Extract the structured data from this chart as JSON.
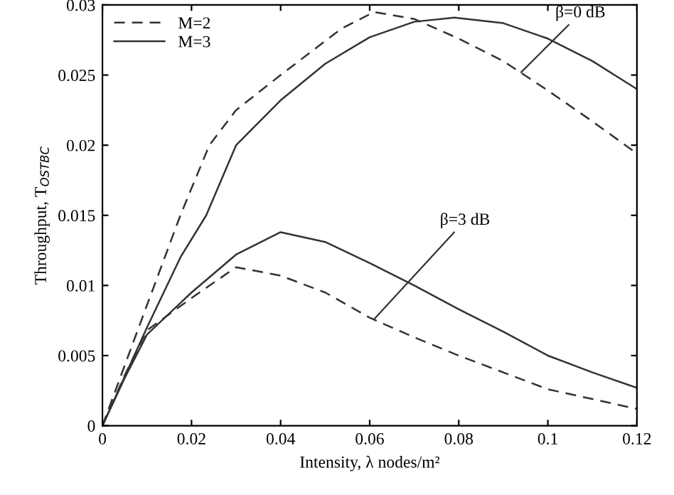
{
  "chart_data": {
    "type": "line",
    "xlabel": "Intensity, λ nodes/m²",
    "ylabel": "Throughput, T$_{OSTBC}$",
    "xlim": [
      0,
      0.12
    ],
    "ylim": [
      0,
      0.03
    ],
    "xticks": [
      0,
      0.02,
      0.04,
      0.06,
      0.08,
      0.1,
      0.12
    ],
    "yticks": [
      0,
      0.005,
      0.01,
      0.015,
      0.02,
      0.025,
      0.03
    ],
    "grid": false,
    "legend": "top left",
    "marker": "none",
    "series": [
      {
        "name": "M=2",
        "color": "#333333",
        "line_style": "dashed",
        "x": [
          0,
          0.005,
          0.01,
          0.0175,
          0.024,
          0.03,
          0.04,
          0.0536,
          0.061,
          0.07,
          0.08,
          0.09,
          0.1,
          0.11,
          0.12
        ],
        "values": [
          0,
          0.0043,
          0.0086,
          0.015,
          0.02,
          0.0225,
          0.025,
          0.0283,
          0.0295,
          0.029,
          0.0276,
          0.026,
          0.0239,
          0.0217,
          0.0194
        ]
      },
      {
        "name": "M=3",
        "color": "#333333",
        "line_style": "solid",
        "x": [
          0,
          0.005,
          0.01,
          0.0175,
          0.0233,
          0.03,
          0.04,
          0.05,
          0.06,
          0.07,
          0.079,
          0.09,
          0.1,
          0.11,
          0.12
        ],
        "values": [
          0,
          0.0035,
          0.007,
          0.012,
          0.015,
          0.02,
          0.0232,
          0.0258,
          0.0277,
          0.0288,
          0.0291,
          0.0287,
          0.0276,
          0.026,
          0.024
        ]
      },
      {
        "color": "#333333",
        "line_style": "dashed",
        "x": [
          0,
          0.005,
          0.01,
          0.02,
          0.03,
          0.04,
          0.05,
          0.06,
          0.07,
          0.08,
          0.09,
          0.1,
          0.11,
          0.12
        ],
        "values": [
          0,
          0.0036,
          0.0068,
          0.0091,
          0.0113,
          0.0107,
          0.0095,
          0.0077,
          0.0063,
          0.005,
          0.0038,
          0.0026,
          0.0019,
          0.0012
        ]
      },
      {
        "color": "#333333",
        "line_style": "solid",
        "x": [
          0,
          0.005,
          0.01,
          0.02,
          0.03,
          0.04,
          0.05,
          0.06,
          0.07,
          0.08,
          0.09,
          0.1,
          0.11,
          0.12
        ],
        "values": [
          0,
          0.0034,
          0.0065,
          0.0095,
          0.0122,
          0.0138,
          0.0131,
          0.0116,
          0.01,
          0.0083,
          0.0067,
          0.005,
          0.0038,
          0.0027
        ]
      }
    ],
    "annotations": [
      {
        "text": "β=0 dB",
        "x": 0.094,
        "y": 0.0252
      },
      {
        "text": "β=3 dB",
        "x": 0.061,
        "y": 0.0076
      }
    ]
  }
}
